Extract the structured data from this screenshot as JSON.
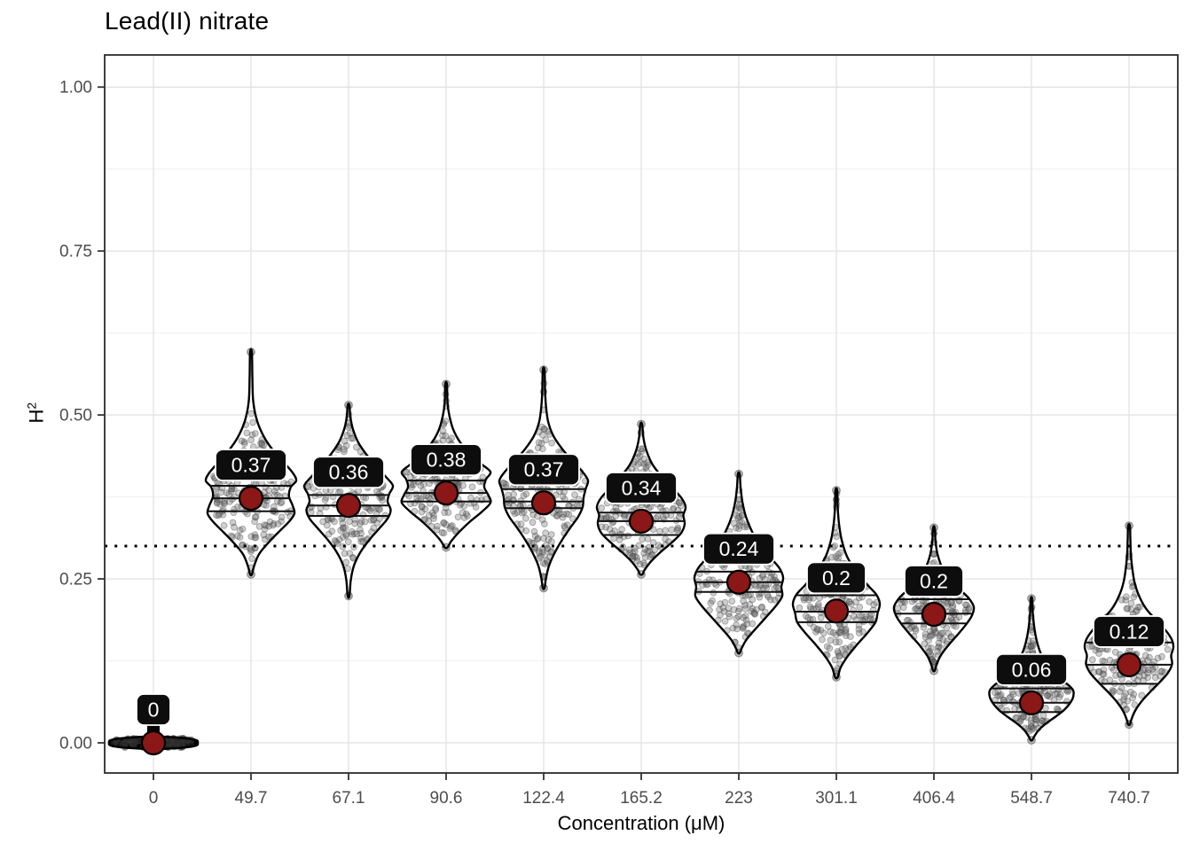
{
  "title": "Lead(II) nitrate",
  "chart_data": {
    "type": "violin",
    "title": "Lead(II) nitrate",
    "xlabel": "Concentration (μM)",
    "ylabel": "H²",
    "ylabel_base": "H",
    "ylabel_exp": "2",
    "x_categories": [
      "0",
      "49.7",
      "67.1",
      "90.6",
      "122.4",
      "165.2",
      "223",
      "301.1",
      "406.4",
      "548.7",
      "740.7"
    ],
    "y_ticks": [
      "0.00",
      "0.25",
      "0.50",
      "0.75",
      "1.00"
    ],
    "y_tick_values": [
      0,
      0.25,
      0.5,
      0.75,
      1.0
    ],
    "ylim": [
      -0.046,
      1.049
    ],
    "grid": "major+minor horizontal, major vertical",
    "legend": "none",
    "reference_line_y": 0.3,
    "reference_line_style": "dotted",
    "jitter_points_per_violin": 185,
    "violins": [
      {
        "x": "0",
        "mean": 0.0,
        "mean_label": "0",
        "q1": 0.0,
        "median": 0.0,
        "q3": 0.0,
        "min": -0.007,
        "max": 0.007,
        "flat": true,
        "halfwidth": 50,
        "profile": [
          [
            0.01,
            0.03
          ],
          [
            0.007,
            0.72
          ],
          [
            0.004,
            0.97
          ],
          [
            0.0,
            1.0
          ],
          [
            -0.004,
            0.97
          ],
          [
            -0.007,
            0.72
          ],
          [
            -0.01,
            0.03
          ]
        ]
      },
      {
        "x": "49.7",
        "mean": 0.373,
        "mean_label": "0.37",
        "q1": 0.353,
        "median": 0.373,
        "q3": 0.392,
        "min": 0.257,
        "max": 0.596,
        "flat": false,
        "halfwidth": 51,
        "profile": [
          [
            0.596,
            0.02
          ],
          [
            0.56,
            0.03
          ],
          [
            0.52,
            0.05
          ],
          [
            0.49,
            0.14
          ],
          [
            0.465,
            0.3
          ],
          [
            0.445,
            0.5
          ],
          [
            0.428,
            0.72
          ],
          [
            0.412,
            0.92
          ],
          [
            0.4,
            1.0
          ],
          [
            0.39,
            0.88
          ],
          [
            0.376,
            0.84
          ],
          [
            0.362,
            0.92
          ],
          [
            0.35,
            0.96
          ],
          [
            0.338,
            0.85
          ],
          [
            0.322,
            0.62
          ],
          [
            0.305,
            0.38
          ],
          [
            0.288,
            0.18
          ],
          [
            0.27,
            0.07
          ],
          [
            0.257,
            0.02
          ]
        ]
      },
      {
        "x": "67.1",
        "mean": 0.362,
        "mean_label": "0.36",
        "q1": 0.346,
        "median": 0.362,
        "q3": 0.378,
        "min": 0.224,
        "max": 0.515,
        "flat": false,
        "halfwidth": 50,
        "profile": [
          [
            0.515,
            0.02
          ],
          [
            0.497,
            0.04
          ],
          [
            0.478,
            0.1
          ],
          [
            0.458,
            0.22
          ],
          [
            0.44,
            0.4
          ],
          [
            0.422,
            0.62
          ],
          [
            0.405,
            0.85
          ],
          [
            0.392,
            1.0
          ],
          [
            0.38,
            0.92
          ],
          [
            0.368,
            0.88
          ],
          [
            0.355,
            0.95
          ],
          [
            0.342,
            0.88
          ],
          [
            0.326,
            0.68
          ],
          [
            0.308,
            0.45
          ],
          [
            0.29,
            0.26
          ],
          [
            0.27,
            0.12
          ],
          [
            0.248,
            0.05
          ],
          [
            0.224,
            0.02
          ]
        ]
      },
      {
        "x": "90.6",
        "mean": 0.381,
        "mean_label": "0.38",
        "q1": 0.368,
        "median": 0.381,
        "q3": 0.4,
        "min": 0.298,
        "max": 0.547,
        "flat": false,
        "halfwidth": 50,
        "profile": [
          [
            0.547,
            0.02
          ],
          [
            0.52,
            0.03
          ],
          [
            0.5,
            0.07
          ],
          [
            0.478,
            0.16
          ],
          [
            0.458,
            0.32
          ],
          [
            0.44,
            0.55
          ],
          [
            0.425,
            0.8
          ],
          [
            0.413,
            1.0
          ],
          [
            0.402,
            0.9
          ],
          [
            0.39,
            0.86
          ],
          [
            0.378,
            0.95
          ],
          [
            0.366,
            1.0
          ],
          [
            0.352,
            0.8
          ],
          [
            0.338,
            0.55
          ],
          [
            0.322,
            0.3
          ],
          [
            0.308,
            0.12
          ],
          [
            0.298,
            0.03
          ]
        ]
      },
      {
        "x": "122.4",
        "mean": 0.366,
        "mean_label": "0.37",
        "q1": 0.358,
        "median": 0.368,
        "q3": 0.387,
        "min": 0.236,
        "max": 0.569,
        "flat": false,
        "halfwidth": 50,
        "profile": [
          [
            0.569,
            0.02
          ],
          [
            0.54,
            0.03
          ],
          [
            0.515,
            0.05
          ],
          [
            0.49,
            0.1
          ],
          [
            0.468,
            0.22
          ],
          [
            0.448,
            0.42
          ],
          [
            0.43,
            0.65
          ],
          [
            0.413,
            0.88
          ],
          [
            0.4,
            1.0
          ],
          [
            0.388,
            0.95
          ],
          [
            0.374,
            0.9
          ],
          [
            0.36,
            0.88
          ],
          [
            0.345,
            0.78
          ],
          [
            0.328,
            0.6
          ],
          [
            0.31,
            0.42
          ],
          [
            0.29,
            0.25
          ],
          [
            0.27,
            0.12
          ],
          [
            0.25,
            0.05
          ],
          [
            0.236,
            0.02
          ]
        ]
      },
      {
        "x": "165.2",
        "mean": 0.338,
        "mean_label": "0.34",
        "q1": 0.317,
        "median": 0.338,
        "q3": 0.351,
        "min": 0.257,
        "max": 0.486,
        "flat": false,
        "halfwidth": 50,
        "profile": [
          [
            0.486,
            0.02
          ],
          [
            0.465,
            0.05
          ],
          [
            0.445,
            0.12
          ],
          [
            0.425,
            0.25
          ],
          [
            0.407,
            0.45
          ],
          [
            0.39,
            0.68
          ],
          [
            0.374,
            0.9
          ],
          [
            0.36,
            1.0
          ],
          [
            0.347,
            0.95
          ],
          [
            0.334,
            0.98
          ],
          [
            0.32,
            0.9
          ],
          [
            0.305,
            0.68
          ],
          [
            0.29,
            0.42
          ],
          [
            0.275,
            0.2
          ],
          [
            0.263,
            0.07
          ],
          [
            0.257,
            0.03
          ]
        ]
      },
      {
        "x": "223",
        "mean": 0.245,
        "mean_label": "0.24",
        "q1": 0.23,
        "median": 0.245,
        "q3": 0.261,
        "min": 0.137,
        "max": 0.41,
        "flat": false,
        "halfwidth": 50,
        "profile": [
          [
            0.41,
            0.02
          ],
          [
            0.39,
            0.04
          ],
          [
            0.368,
            0.08
          ],
          [
            0.345,
            0.16
          ],
          [
            0.322,
            0.3
          ],
          [
            0.3,
            0.5
          ],
          [
            0.282,
            0.72
          ],
          [
            0.266,
            0.92
          ],
          [
            0.252,
            1.0
          ],
          [
            0.238,
            0.96
          ],
          [
            0.224,
            0.98
          ],
          [
            0.21,
            0.85
          ],
          [
            0.192,
            0.62
          ],
          [
            0.174,
            0.38
          ],
          [
            0.158,
            0.18
          ],
          [
            0.145,
            0.07
          ],
          [
            0.137,
            0.02
          ]
        ]
      },
      {
        "x": "301.1",
        "mean": 0.201,
        "mean_label": "0.2",
        "q1": 0.184,
        "median": 0.2,
        "q3": 0.225,
        "min": 0.1,
        "max": 0.385,
        "flat": false,
        "halfwidth": 49,
        "profile": [
          [
            0.385,
            0.02
          ],
          [
            0.36,
            0.03
          ],
          [
            0.335,
            0.06
          ],
          [
            0.31,
            0.12
          ],
          [
            0.285,
            0.24
          ],
          [
            0.262,
            0.45
          ],
          [
            0.242,
            0.7
          ],
          [
            0.226,
            0.92
          ],
          [
            0.212,
            1.0
          ],
          [
            0.198,
            0.95
          ],
          [
            0.184,
            0.9
          ],
          [
            0.168,
            0.72
          ],
          [
            0.15,
            0.48
          ],
          [
            0.132,
            0.26
          ],
          [
            0.115,
            0.1
          ],
          [
            0.1,
            0.03
          ]
        ]
      },
      {
        "x": "406.4",
        "mean": 0.196,
        "mean_label": "0.2",
        "q1": 0.182,
        "median": 0.197,
        "q3": 0.219,
        "min": 0.11,
        "max": 0.328,
        "flat": false,
        "halfwidth": 45,
        "profile": [
          [
            0.328,
            0.02
          ],
          [
            0.308,
            0.04
          ],
          [
            0.288,
            0.09
          ],
          [
            0.268,
            0.2
          ],
          [
            0.25,
            0.4
          ],
          [
            0.234,
            0.65
          ],
          [
            0.22,
            0.88
          ],
          [
            0.207,
            1.0
          ],
          [
            0.194,
            0.95
          ],
          [
            0.18,
            0.8
          ],
          [
            0.164,
            0.58
          ],
          [
            0.148,
            0.35
          ],
          [
            0.132,
            0.16
          ],
          [
            0.118,
            0.06
          ],
          [
            0.11,
            0.02
          ]
        ]
      },
      {
        "x": "548.7",
        "mean": 0.061,
        "mean_label": "0.06",
        "q1": 0.047,
        "median": 0.061,
        "q3": 0.083,
        "min": 0.004,
        "max": 0.22,
        "flat": false,
        "halfwidth": 47,
        "profile": [
          [
            0.22,
            0.02
          ],
          [
            0.2,
            0.03
          ],
          [
            0.18,
            0.06
          ],
          [
            0.16,
            0.11
          ],
          [
            0.14,
            0.2
          ],
          [
            0.12,
            0.35
          ],
          [
            0.103,
            0.58
          ],
          [
            0.09,
            0.85
          ],
          [
            0.08,
            1.0
          ],
          [
            0.07,
            1.0
          ],
          [
            0.06,
            0.92
          ],
          [
            0.05,
            0.78
          ],
          [
            0.04,
            0.58
          ],
          [
            0.03,
            0.36
          ],
          [
            0.02,
            0.18
          ],
          [
            0.01,
            0.07
          ],
          [
            0.004,
            0.02
          ]
        ]
      },
      {
        "x": "740.7",
        "mean": 0.119,
        "mean_label": "0.12",
        "q1": 0.09,
        "median": 0.119,
        "q3": 0.153,
        "min": 0.028,
        "max": 0.331,
        "flat": false,
        "halfwidth": 50,
        "profile": [
          [
            0.331,
            0.02
          ],
          [
            0.31,
            0.03
          ],
          [
            0.29,
            0.04
          ],
          [
            0.268,
            0.07
          ],
          [
            0.246,
            0.12
          ],
          [
            0.225,
            0.22
          ],
          [
            0.205,
            0.38
          ],
          [
            0.188,
            0.6
          ],
          [
            0.172,
            0.82
          ],
          [
            0.158,
            0.96
          ],
          [
            0.146,
            1.0
          ],
          [
            0.133,
            0.95
          ],
          [
            0.12,
            0.97
          ],
          [
            0.107,
            0.88
          ],
          [
            0.093,
            0.7
          ],
          [
            0.078,
            0.48
          ],
          [
            0.063,
            0.28
          ],
          [
            0.048,
            0.13
          ],
          [
            0.035,
            0.05
          ],
          [
            0.028,
            0.02
          ]
        ]
      }
    ]
  },
  "colors": {
    "background": "#ffffff",
    "panel_border": "#2b2b2b",
    "grid_major": "#e3e3e3",
    "grid_minor": "#f1f1f1",
    "axis_text": "#4d4d4d",
    "axis_title": "#000000",
    "violin_outline": "#000000",
    "violin_fill": "#ffffff",
    "flat_violin_fill": "#000000",
    "jitter_fill": "rgba(96,96,96,0.30)",
    "jitter_stroke": "rgba(64,64,64,0.38)",
    "mean_dot": "#8b1717",
    "mean_dot_stroke": "#000000",
    "label_bg": "#0d0d0d",
    "label_border": "#ffffff",
    "label_text": "#ffffff",
    "reference_line": "#000000",
    "quantile_line": "#111111"
  }
}
